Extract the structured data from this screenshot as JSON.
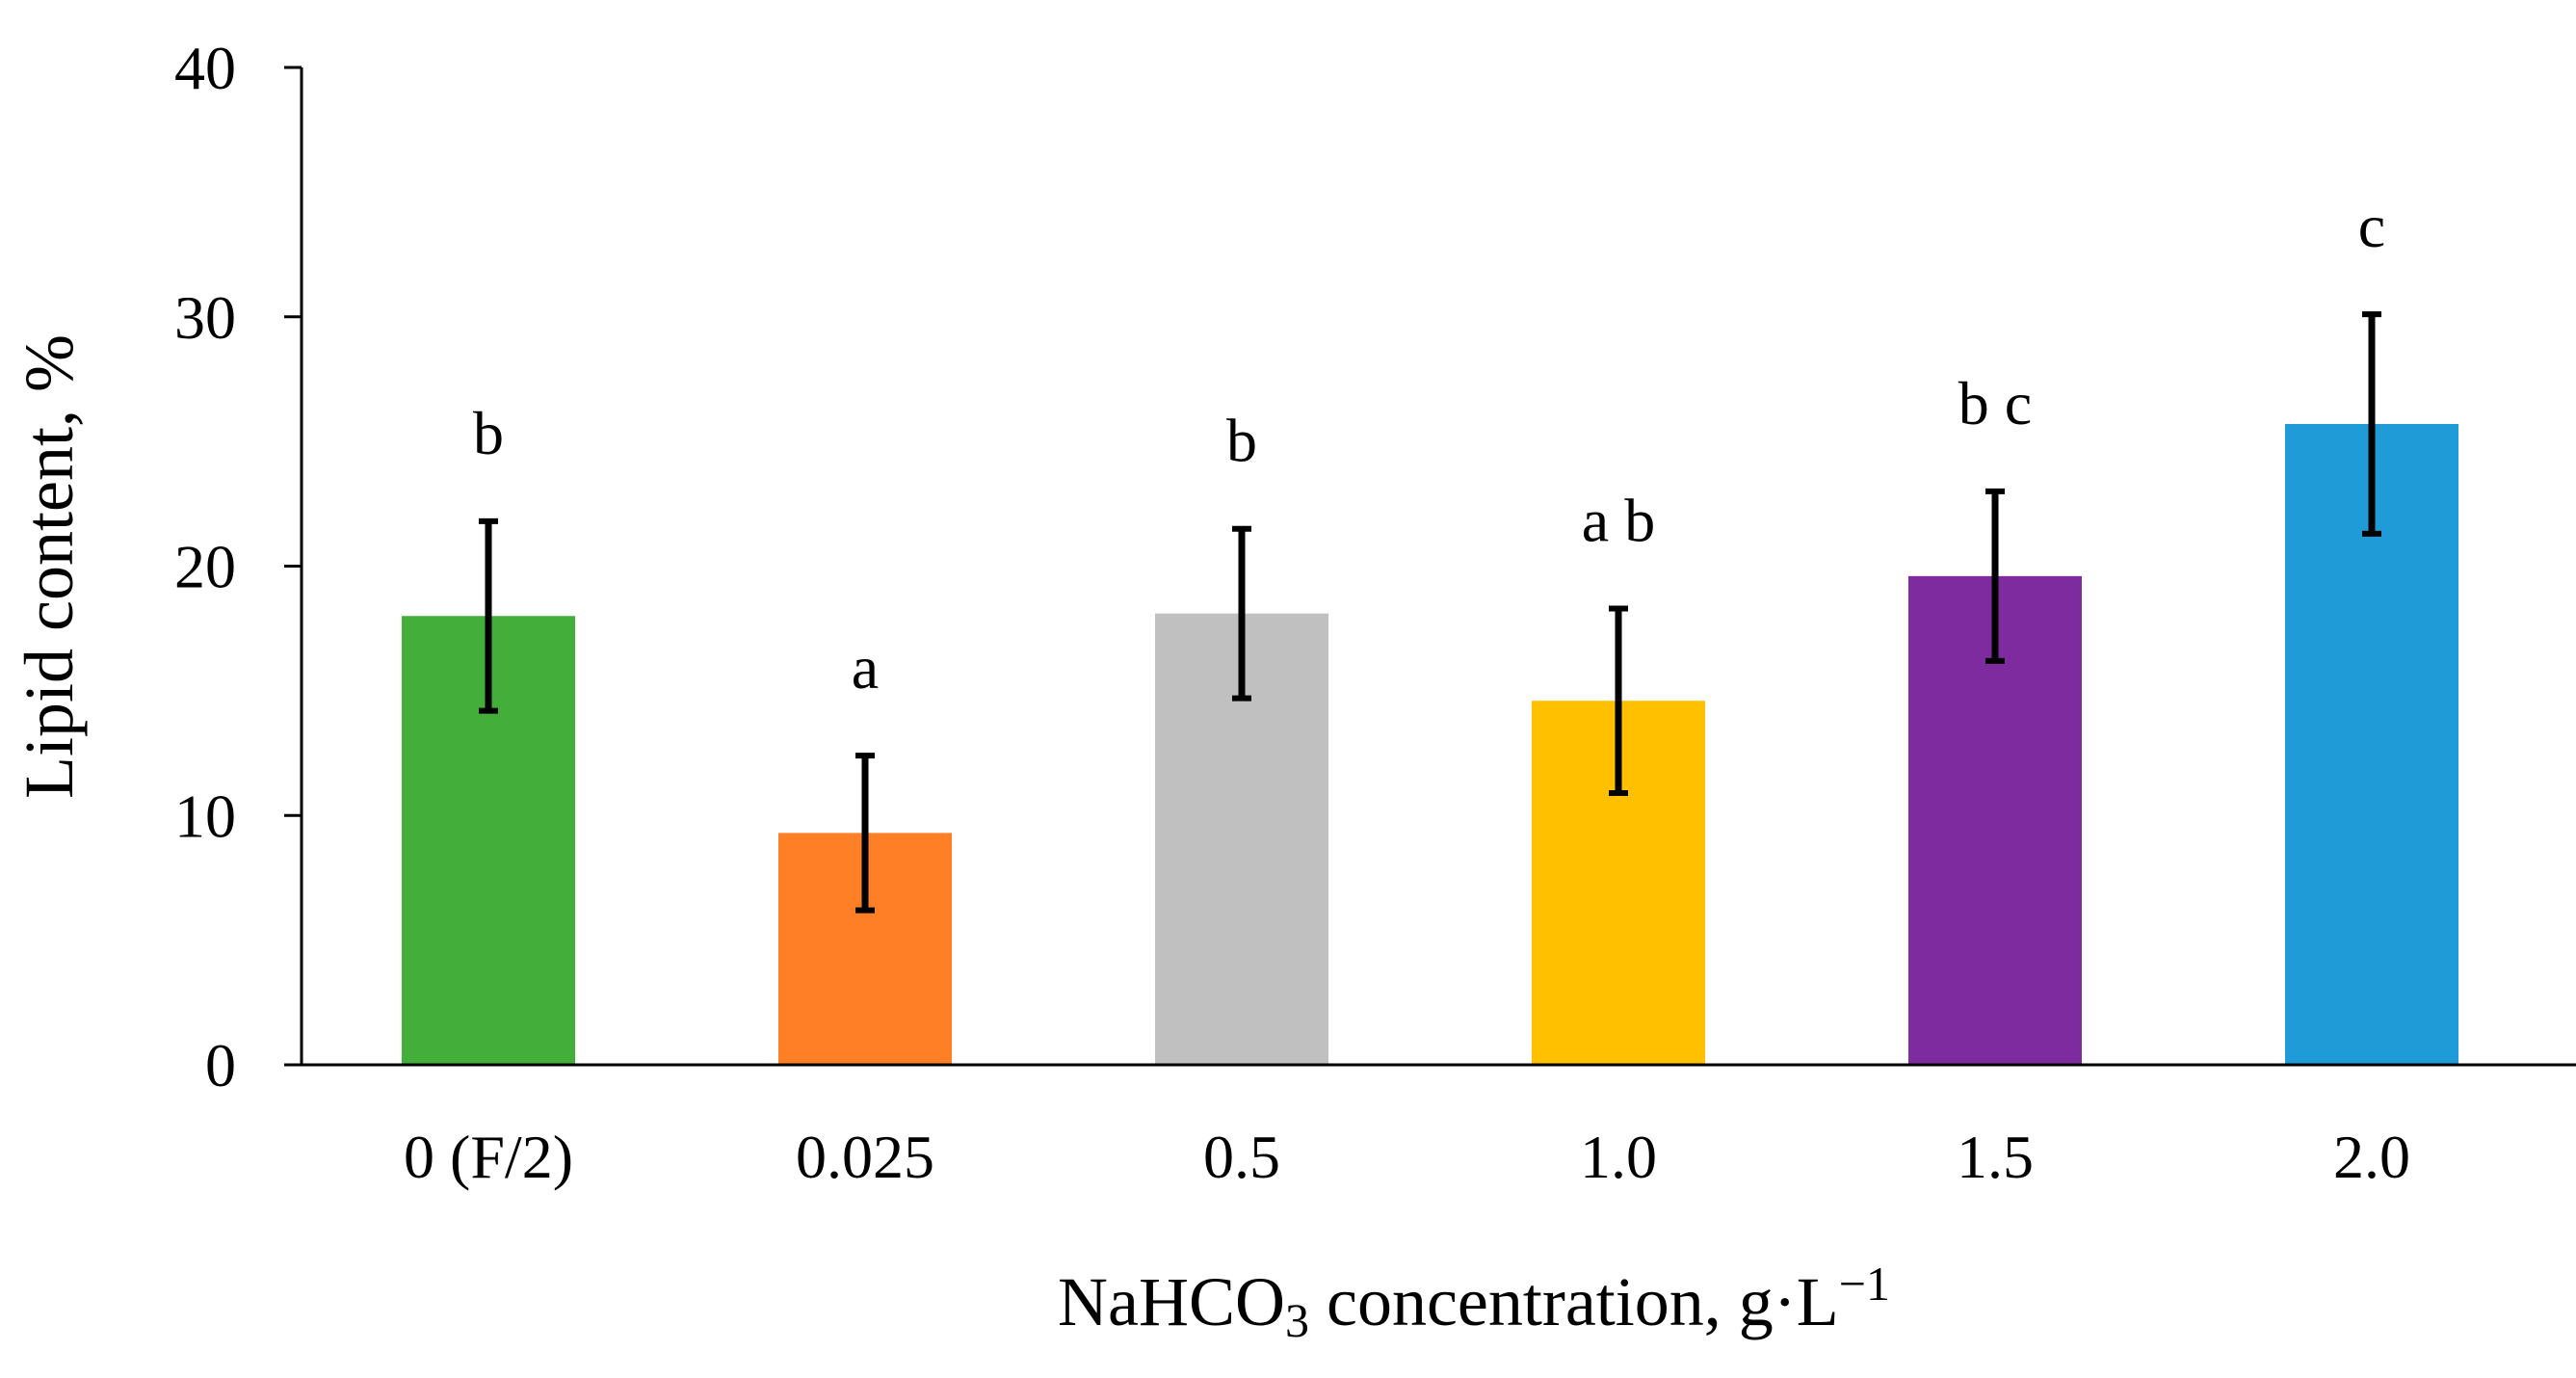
{
  "chart_data": {
    "type": "bar",
    "title": "",
    "xlabel": {
      "main": "NaHCO",
      "subscript": "3",
      "rest": " concentration, g·L",
      "superscript": "−1"
    },
    "ylabel": "Lipid content, %",
    "ylim": [
      0,
      40
    ],
    "yticks": [
      "0",
      "10",
      "20",
      "30",
      "40"
    ],
    "grid": false,
    "categories": [
      "0 (F/2)",
      "0.025",
      "0.5",
      "1.0",
      "1.5",
      "2.0"
    ],
    "values": [
      18.0,
      9.3,
      18.1,
      14.6,
      19.6,
      25.7
    ],
    "errors": [
      3.8,
      3.1,
      3.4,
      3.7,
      3.4,
      4.4
    ],
    "significance": [
      "b",
      "a",
      "b",
      "a b",
      "b c",
      "c"
    ],
    "colors": [
      "#43ae3a",
      "#ff7f27",
      "#c0c0c0",
      "#ffc000",
      "#7e2ba0",
      "#1f9bd7"
    ]
  }
}
